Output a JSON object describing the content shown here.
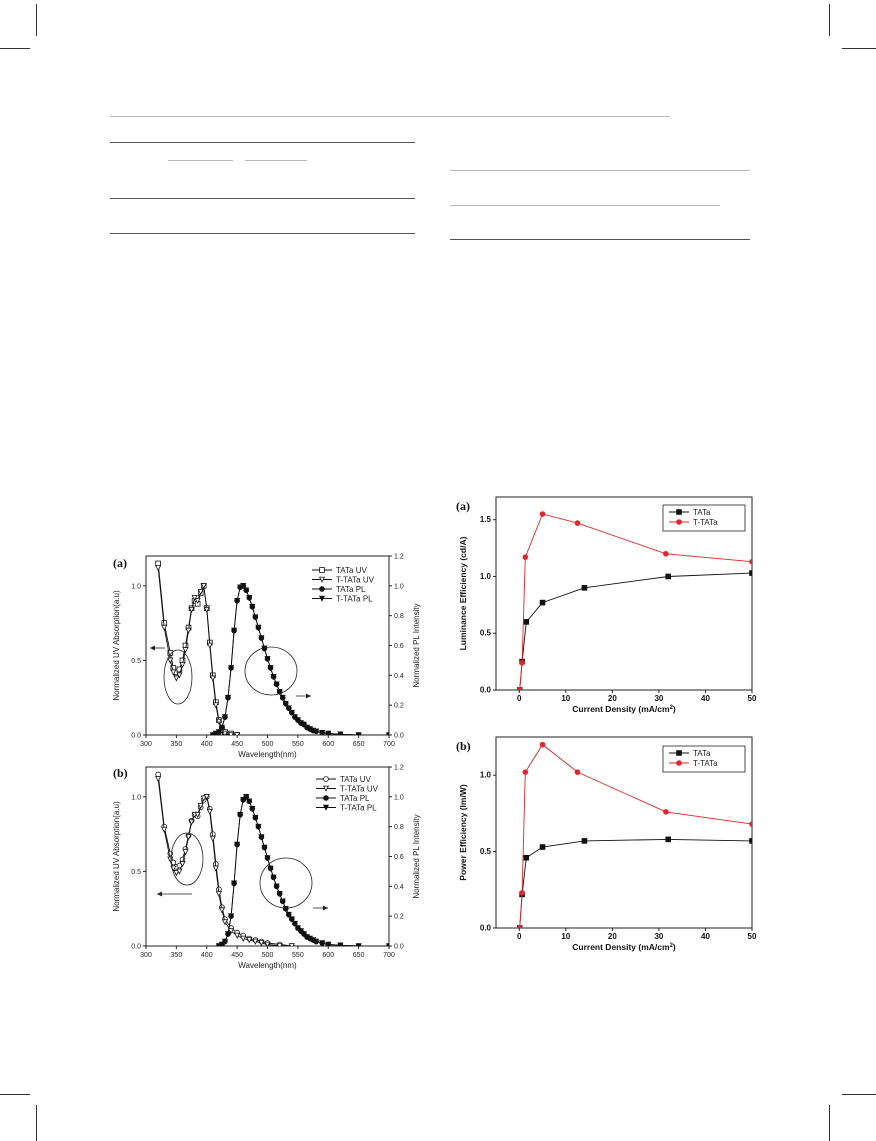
{
  "chart_data": [
    {
      "id": "a",
      "type": "line",
      "panel_label": "(a)",
      "xlabel": "Wavelength(nm)",
      "ylabel": "Normalized UV Absorption(a.u)",
      "y2label": "Normalized PL Intensity",
      "xlim": [
        300,
        700
      ],
      "ylim": [
        0,
        1.2
      ],
      "y2lim": [
        0,
        1.2
      ],
      "xticks": [
        "300",
        "350",
        "400",
        "450",
        "500",
        "550",
        "600",
        "650",
        "700"
      ],
      "yticks": [
        "0.0",
        "0.5",
        "1.0"
      ],
      "y2ticks": [
        "0.0",
        "0.2",
        "0.4",
        "0.6",
        "0.8",
        "1.0",
        "1.2"
      ],
      "legend_position": "top-right",
      "series": [
        {
          "name": "TATa UV",
          "marker": "open-square",
          "x": [
            320,
            330,
            340,
            345,
            350,
            355,
            360,
            365,
            370,
            375,
            380,
            385,
            390,
            395,
            400,
            405,
            410,
            415,
            420,
            425,
            430,
            440,
            450
          ],
          "y": [
            1.15,
            0.75,
            0.55,
            0.45,
            0.42,
            0.44,
            0.5,
            0.6,
            0.72,
            0.85,
            0.9,
            0.88,
            0.95,
            1.0,
            0.85,
            0.62,
            0.4,
            0.22,
            0.1,
            0.04,
            0.02,
            0.01,
            0.0
          ]
        },
        {
          "name": "T-TATa UV",
          "marker": "open-triangle",
          "x": [
            320,
            330,
            340,
            345,
            350,
            355,
            360,
            365,
            370,
            375,
            380,
            385,
            390,
            395,
            400,
            405,
            410,
            415,
            420,
            425,
            430,
            440,
            450
          ],
          "y": [
            1.12,
            0.72,
            0.5,
            0.42,
            0.38,
            0.4,
            0.47,
            0.57,
            0.7,
            0.84,
            0.92,
            0.9,
            0.96,
            1.0,
            0.84,
            0.6,
            0.38,
            0.2,
            0.09,
            0.03,
            0.01,
            0.0,
            0.0
          ]
        },
        {
          "name": "TATa PL",
          "marker": "filled-circle",
          "x": [
            410,
            415,
            420,
            425,
            430,
            435,
            440,
            445,
            450,
            455,
            460,
            465,
            470,
            475,
            480,
            485,
            490,
            495,
            500,
            505,
            510,
            515,
            520,
            525,
            530,
            535,
            540,
            545,
            550,
            555,
            560,
            565,
            570,
            575,
            580,
            590,
            600,
            620,
            650,
            700
          ],
          "y": [
            0.0,
            0.01,
            0.02,
            0.05,
            0.12,
            0.25,
            0.45,
            0.7,
            0.9,
            0.99,
            1.0,
            0.97,
            0.92,
            0.86,
            0.79,
            0.72,
            0.65,
            0.58,
            0.51,
            0.45,
            0.39,
            0.34,
            0.29,
            0.25,
            0.21,
            0.18,
            0.15,
            0.12,
            0.1,
            0.08,
            0.07,
            0.05,
            0.04,
            0.03,
            0.025,
            0.015,
            0.01,
            0.005,
            0.0,
            0.0
          ]
        },
        {
          "name": "T-TATa PL",
          "marker": "filled-triangle",
          "x": [
            410,
            415,
            420,
            425,
            430,
            435,
            440,
            445,
            450,
            455,
            460,
            465,
            470,
            475,
            480,
            485,
            490,
            495,
            500,
            505,
            510,
            515,
            520,
            525,
            530,
            535,
            540,
            545,
            550,
            555,
            560,
            565,
            570,
            575,
            580,
            590,
            600,
            620,
            650,
            700
          ],
          "y": [
            0.0,
            0.01,
            0.02,
            0.05,
            0.12,
            0.25,
            0.45,
            0.7,
            0.9,
            0.99,
            1.0,
            0.97,
            0.92,
            0.86,
            0.79,
            0.72,
            0.65,
            0.58,
            0.51,
            0.45,
            0.39,
            0.34,
            0.29,
            0.25,
            0.21,
            0.18,
            0.15,
            0.12,
            0.1,
            0.08,
            0.07,
            0.05,
            0.04,
            0.03,
            0.025,
            0.015,
            0.01,
            0.005,
            0.0,
            0.0
          ]
        }
      ]
    },
    {
      "id": "b",
      "type": "line",
      "panel_label": "(b)",
      "xlabel": "Wavelength(nm)",
      "ylabel": "Normalized UV Absorption(a.u)",
      "y2label": "Normalized PL Intensity",
      "xlim": [
        300,
        700
      ],
      "ylim": [
        0,
        1.2
      ],
      "y2lim": [
        0,
        1.2
      ],
      "xticks": [
        "300",
        "350",
        "400",
        "450",
        "500",
        "550",
        "600",
        "650",
        "700"
      ],
      "yticks": [
        "0.0",
        "0.5",
        "1.0"
      ],
      "y2ticks": [
        "0.0",
        "0.2",
        "0.4",
        "0.6",
        "0.8",
        "1.0",
        "1.2"
      ],
      "legend_position": "top-right",
      "series": [
        {
          "name": "TATa UV",
          "marker": "open-circle",
          "x": [
            320,
            330,
            340,
            345,
            350,
            355,
            360,
            365,
            370,
            375,
            380,
            385,
            390,
            395,
            400,
            405,
            410,
            415,
            420,
            425,
            430,
            440,
            450,
            460,
            470,
            480,
            490,
            500,
            520,
            540
          ],
          "y": [
            1.15,
            0.8,
            0.62,
            0.56,
            0.53,
            0.54,
            0.58,
            0.65,
            0.74,
            0.84,
            0.88,
            0.87,
            0.93,
            0.98,
            1.0,
            0.92,
            0.75,
            0.55,
            0.38,
            0.26,
            0.18,
            0.12,
            0.09,
            0.07,
            0.05,
            0.04,
            0.03,
            0.02,
            0.01,
            0.0
          ]
        },
        {
          "name": "T-TATa UV",
          "marker": "open-triangle",
          "x": [
            320,
            330,
            340,
            345,
            350,
            355,
            360,
            365,
            370,
            375,
            380,
            385,
            390,
            395,
            400,
            405,
            410,
            415,
            420,
            425,
            430,
            440,
            450,
            460,
            470,
            480,
            490,
            500,
            520,
            540
          ],
          "y": [
            1.12,
            0.78,
            0.58,
            0.52,
            0.49,
            0.5,
            0.55,
            0.63,
            0.73,
            0.83,
            0.88,
            0.88,
            0.94,
            0.99,
            1.0,
            0.9,
            0.72,
            0.52,
            0.35,
            0.24,
            0.16,
            0.1,
            0.07,
            0.05,
            0.04,
            0.03,
            0.02,
            0.01,
            0.0,
            0.0
          ]
        },
        {
          "name": "TATa PL",
          "marker": "filled-circle",
          "x": [
            420,
            425,
            430,
            435,
            440,
            445,
            450,
            455,
            460,
            465,
            470,
            475,
            480,
            485,
            490,
            495,
            500,
            505,
            510,
            515,
            520,
            525,
            530,
            535,
            540,
            545,
            550,
            555,
            560,
            565,
            570,
            575,
            580,
            590,
            600,
            620,
            650,
            700
          ],
          "y": [
            0.0,
            0.01,
            0.03,
            0.08,
            0.2,
            0.42,
            0.68,
            0.88,
            0.98,
            1.0,
            0.97,
            0.92,
            0.86,
            0.8,
            0.73,
            0.66,
            0.59,
            0.52,
            0.46,
            0.4,
            0.35,
            0.3,
            0.25,
            0.21,
            0.18,
            0.15,
            0.12,
            0.1,
            0.08,
            0.06,
            0.05,
            0.04,
            0.03,
            0.02,
            0.01,
            0.005,
            0.0,
            0.0
          ]
        },
        {
          "name": "T-TATa PL",
          "marker": "filled-triangle",
          "x": [
            420,
            425,
            430,
            435,
            440,
            445,
            450,
            455,
            460,
            465,
            470,
            475,
            480,
            485,
            490,
            495,
            500,
            505,
            510,
            515,
            520,
            525,
            530,
            535,
            540,
            545,
            550,
            555,
            560,
            565,
            570,
            575,
            580,
            590,
            600,
            620,
            650,
            700
          ],
          "y": [
            0.0,
            0.01,
            0.03,
            0.08,
            0.2,
            0.42,
            0.68,
            0.88,
            0.98,
            1.0,
            0.97,
            0.92,
            0.86,
            0.8,
            0.73,
            0.66,
            0.59,
            0.52,
            0.46,
            0.4,
            0.35,
            0.3,
            0.25,
            0.21,
            0.18,
            0.15,
            0.12,
            0.1,
            0.08,
            0.06,
            0.05,
            0.04,
            0.03,
            0.02,
            0.01,
            0.005,
            0.0,
            0.0
          ]
        }
      ]
    },
    {
      "id": "c",
      "type": "line",
      "panel_label": "(a)",
      "xlabel": "Current Density (mA/cm",
      "xlabel_sup": "2",
      "xlabel_end": ")",
      "ylabel": "Luminance Efficiency (cd/A)",
      "xlim": [
        -5,
        50
      ],
      "ylim": [
        0,
        1.7
      ],
      "xticks": [
        "0",
        "10",
        "20",
        "30",
        "40",
        "50"
      ],
      "yticks": [
        "0.0",
        "0.5",
        "1.0",
        "1.5"
      ],
      "legend_position": "top-right",
      "colors": {
        "TATa": "#111111",
        "T-TATa": "#e8232a"
      },
      "series": [
        {
          "name": "TATa",
          "marker": "filled-square",
          "x": [
            0.1,
            0.6,
            1.5,
            5,
            14,
            32,
            50
          ],
          "y": [
            0.0,
            0.25,
            0.6,
            0.77,
            0.9,
            1.0,
            1.03
          ]
        },
        {
          "name": "T-TATa",
          "marker": "filled-circle",
          "x": [
            0.1,
            0.6,
            1.3,
            5,
            12.5,
            31.5,
            50
          ],
          "y": [
            0.0,
            0.24,
            1.17,
            1.55,
            1.47,
            1.2,
            1.13
          ]
        }
      ]
    },
    {
      "id": "d",
      "type": "line",
      "panel_label": "(b)",
      "xlabel": "Current Density (mA/cm",
      "xlabel_sup": "2",
      "xlabel_end": ")",
      "ylabel": "Power Efficiency (lm/W)",
      "xlim": [
        -5,
        50
      ],
      "ylim": [
        0,
        1.25
      ],
      "xticks": [
        "0",
        "10",
        "20",
        "30",
        "40",
        "50"
      ],
      "yticks": [
        "0.0",
        "0.5",
        "1.0"
      ],
      "legend_position": "top-right",
      "colors": {
        "TATa": "#111111",
        "T-TATa": "#e8232a"
      },
      "series": [
        {
          "name": "TATa",
          "marker": "filled-square",
          "x": [
            0.1,
            0.6,
            1.5,
            5,
            14,
            32,
            50
          ],
          "y": [
            0.0,
            0.22,
            0.46,
            0.53,
            0.57,
            0.58,
            0.57
          ]
        },
        {
          "name": "T-TATa",
          "marker": "filled-circle",
          "x": [
            0.1,
            0.6,
            1.3,
            5,
            12.5,
            31.5,
            50
          ],
          "y": [
            0.0,
            0.23,
            1.02,
            1.2,
            1.02,
            0.76,
            0.68
          ]
        }
      ]
    }
  ]
}
